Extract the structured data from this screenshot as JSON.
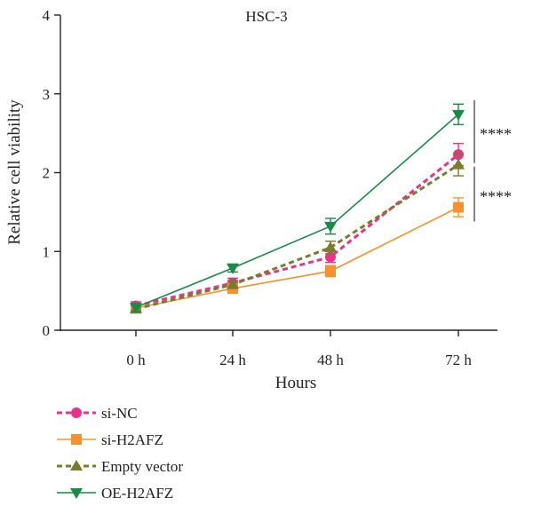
{
  "chart_data": {
    "type": "line",
    "title": "HSC-3",
    "xlabel": "Hours",
    "ylabel": "Relative cell viability",
    "categories": [
      "0 h",
      "24 h",
      "48 h",
      "72 h"
    ],
    "ylim": [
      0,
      4
    ],
    "yticks": [
      0,
      1,
      2,
      3,
      4
    ],
    "grid": false,
    "legend_position": "bottom-left",
    "series": [
      {
        "name": "si-NC",
        "values": [
          0.31,
          0.6,
          0.93,
          2.23
        ],
        "errors": [
          0.05,
          0.06,
          0.07,
          0.14
        ],
        "color": "#e8338a",
        "dashed": true,
        "marker": "circle"
      },
      {
        "name": "si-H2AFZ",
        "values": [
          0.28,
          0.53,
          0.75,
          1.56
        ],
        "errors": [
          0.04,
          0.04,
          0.07,
          0.12
        ],
        "color": "#f5922f",
        "dashed": false,
        "marker": "square"
      },
      {
        "name": "Empty vector",
        "values": [
          0.27,
          0.58,
          1.05,
          2.1
        ],
        "errors": [
          0.05,
          0.05,
          0.08,
          0.14
        ],
        "color": "#7b7b2e",
        "dashed": true,
        "marker": "triangle-up"
      },
      {
        "name": "OE-H2AFZ",
        "values": [
          0.29,
          0.79,
          1.32,
          2.74
        ],
        "errors": [
          0.05,
          0.05,
          0.1,
          0.13
        ],
        "color": "#1a8a48",
        "dashed": false,
        "marker": "triangle-down"
      }
    ],
    "annotations": [
      {
        "text": "****",
        "y_from": 2.74,
        "y_to": 2.1
      },
      {
        "text": "****",
        "y_from": 2.1,
        "y_to": 1.56
      }
    ]
  }
}
